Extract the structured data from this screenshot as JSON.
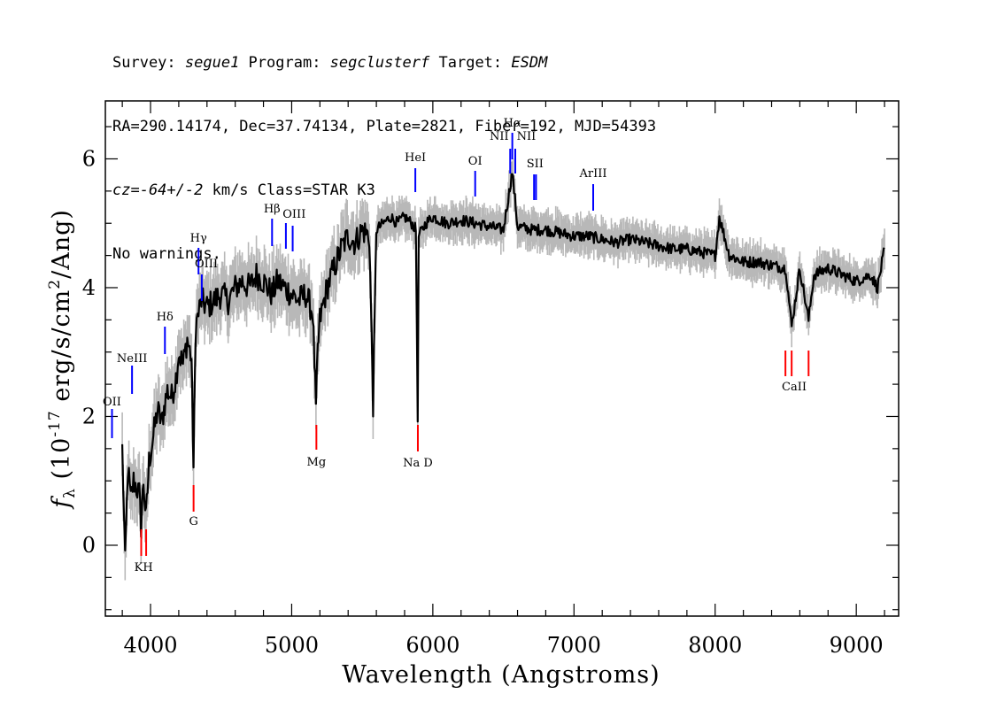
{
  "header": {
    "line1": {
      "survey_label": "Survey: ",
      "survey": "segue1",
      "program_label": " Program: ",
      "program": "segclusterf",
      "target_label": " Target: ",
      "target": "ESDM"
    },
    "line2": "RA=290.14174, Dec=37.74134, Plate=2821, Fiber=192, MJD=54393",
    "line3": {
      "cz": "cz=-64+/-2",
      "rest": " km/s Class=STAR K3"
    },
    "line4": "No warnings."
  },
  "chart_data": {
    "type": "line",
    "xlabel": "Wavelength (Angstroms)",
    "ylabel_main": "f",
    "ylabel_sub": "λ",
    "ylabel_rest": " (10",
    "ylabel_exp": "-17",
    "ylabel_tail": " erg/s/cm",
    "ylabel_exp2": "2",
    "ylabel_end": "/Ang)",
    "xlim": [
      3680,
      9300
    ],
    "ylim": [
      -1.1,
      6.9
    ],
    "x_ticks": [
      4000,
      5000,
      6000,
      7000,
      8000,
      9000
    ],
    "y_ticks": [
      0,
      2,
      4,
      6
    ],
    "colors": {
      "flux": "#000000",
      "error": "#b8b8b8",
      "emission": "#0000ff",
      "absorption": "#ff0000"
    },
    "series": [
      {
        "x": [
          3800,
          3820,
          3840,
          3860,
          3880,
          3900,
          3920,
          3933,
          3950,
          3968,
          3990,
          4020,
          4050,
          4080,
          4101,
          4120,
          4150,
          4180,
          4200,
          4230,
          4260,
          4290,
          4305,
          4320,
          4340,
          4360,
          4400,
          4450,
          4500,
          4550,
          4600,
          4650,
          4700,
          4750,
          4800,
          4861,
          4900,
          4950,
          5000,
          5050,
          5100,
          5150,
          5172,
          5185,
          5200,
          5250,
          5300,
          5350,
          5400,
          5450,
          5500,
          5550,
          5577,
          5600,
          5650,
          5700,
          5750,
          5800,
          5850,
          5880,
          5893,
          5900,
          5950,
          6000,
          6100,
          6200,
          6300,
          6400,
          6500,
          6563,
          6600,
          6700,
          6800,
          6900,
          7000,
          7100,
          7200,
          7300,
          7400,
          7500,
          7600,
          7700,
          7800,
          7900,
          8000,
          8030,
          8100,
          8200,
          8300,
          8400,
          8500,
          8542,
          8600,
          8662,
          8700,
          8800,
          8900,
          9000,
          9100,
          9150,
          9200
        ],
        "y": [
          1.5,
          -0.3,
          1.2,
          0.7,
          1.0,
          0.9,
          0.8,
          0.3,
          1.0,
          0.4,
          1.3,
          1.7,
          2.1,
          1.9,
          2.2,
          2.4,
          2.3,
          2.6,
          3.0,
          2.8,
          3.2,
          2.9,
          1.2,
          3.4,
          3.6,
          3.8,
          3.7,
          3.8,
          3.9,
          3.8,
          4.0,
          4.1,
          4.0,
          4.2,
          4.1,
          3.9,
          4.1,
          4.0,
          3.9,
          3.8,
          3.9,
          3.6,
          2.1,
          3.0,
          3.5,
          4.0,
          4.3,
          4.6,
          4.8,
          4.7,
          4.9,
          4.8,
          2.2,
          4.9,
          5.0,
          5.1,
          5.0,
          5.1,
          5.0,
          4.9,
          2.0,
          4.8,
          5.0,
          5.1,
          5.0,
          5.05,
          5.0,
          4.95,
          4.9,
          5.8,
          4.95,
          4.9,
          4.9,
          4.85,
          4.8,
          4.8,
          4.75,
          4.7,
          4.75,
          4.7,
          4.65,
          4.6,
          4.6,
          4.55,
          4.5,
          5.1,
          4.5,
          4.4,
          4.4,
          4.35,
          4.3,
          3.4,
          4.3,
          3.5,
          4.2,
          4.3,
          4.2,
          4.1,
          4.2,
          4.0,
          4.6
        ]
      }
    ],
    "emission_lines": [
      {
        "label": "OII",
        "x": 3727
      },
      {
        "label": "NeIII",
        "x": 3869
      },
      {
        "label": "Hδ",
        "x": 4102
      },
      {
        "label": "Hγ",
        "x": 4340
      },
      {
        "label": "OIII",
        "x": 4363
      },
      {
        "label": "Hβ",
        "x": 4861
      },
      {
        "label": "OIII",
        "x": 4959
      },
      {
        "label": "OIII_2",
        "x": 5007
      },
      {
        "label": "HeI",
        "x": 5876
      },
      {
        "label": "OI",
        "x": 6300
      },
      {
        "label": "NII",
        "x": 6548
      },
      {
        "label": "Hα",
        "x": 6563
      },
      {
        "label": "NII",
        "x": 6584
      },
      {
        "label": "SII",
        "x": 6717
      },
      {
        "label": "SII_2",
        "x": 6731
      },
      {
        "label": "ArIII",
        "x": 7136
      }
    ],
    "absorption_lines": [
      {
        "label": "K",
        "x": 3934
      },
      {
        "label": "H",
        "x": 3969
      },
      {
        "label": "G",
        "x": 4305
      },
      {
        "label": "Mg",
        "x": 5175
      },
      {
        "label": "Na D",
        "x": 5894
      },
      {
        "label": "CaII",
        "x": 8498
      },
      {
        "label": "CaII_2",
        "x": 8542
      },
      {
        "label": "CaII_3",
        "x": 8662
      }
    ],
    "line_text": {
      "OII": "OII",
      "NeIII": "NeIII",
      "Hd": "Hδ",
      "Hg": "Hγ",
      "OIII_a": "OIII",
      "Hb": "Hβ",
      "OIII_b": "OIII",
      "HeI": "HeI",
      "OI": "OI",
      "NII_a": "NII",
      "Ha": "Hα",
      "NII_b": "NII",
      "SII": "SII",
      "ArIII": "ArIII",
      "KH": "KH",
      "G": "G",
      "Mg": "Mg",
      "NaD": "Na  D",
      "CaII": "CaII"
    }
  }
}
